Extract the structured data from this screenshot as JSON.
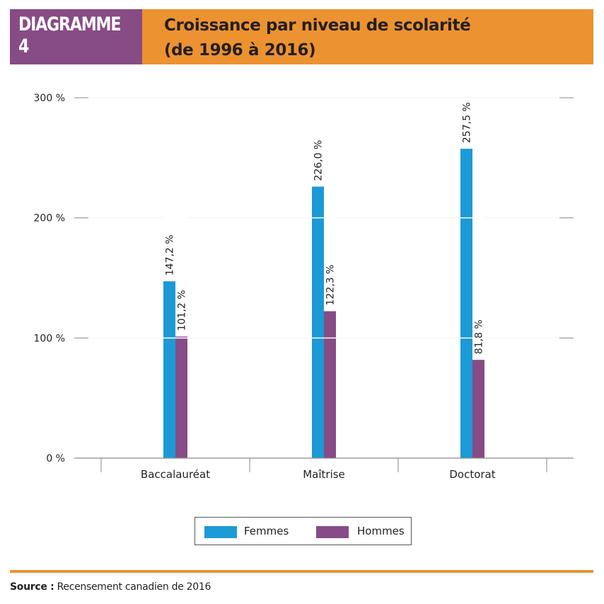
{
  "header": {
    "badge": "DIAGRAMME 4",
    "title_line1": "Croissance par niveau de scolarité",
    "title_line2": "(de 1996 à 2016)"
  },
  "colors": {
    "badge_bg": "#874b86",
    "title_bg": "#ec9231",
    "femmes": "#1b9ad6",
    "hommes": "#874b86",
    "rule": "#ec9231"
  },
  "chart_data": {
    "type": "bar",
    "title": "Croissance par niveau de scolarité (de 1996 à 2016)",
    "xlabel": "",
    "ylabel": "",
    "categories": [
      "Baccalauréat",
      "Maîtrise",
      "Doctorat"
    ],
    "series": [
      {
        "name": "Femmes",
        "color": "#1b9ad6",
        "values": [
          147.2,
          226.0,
          257.5
        ],
        "labels": [
          "147,2 %",
          "226,0 %",
          "257,5 %"
        ]
      },
      {
        "name": "Hommes",
        "color": "#874b86",
        "values": [
          101.2,
          122.3,
          81.8
        ],
        "labels": [
          "101,2 %",
          "122,3 %",
          "81,8 %"
        ]
      }
    ],
    "ylim": [
      0,
      300
    ],
    "yticks": [
      0,
      100,
      200,
      300
    ],
    "ytick_labels": [
      "0 %",
      "100 %",
      "200 %",
      "300 %"
    ],
    "grid": true,
    "legend_position": "bottom-center"
  },
  "legend": {
    "items": [
      "Femmes",
      "Hommes"
    ]
  },
  "footer": {
    "source_label": "Source :",
    "source_text": "Recensement canadien de 2016"
  }
}
